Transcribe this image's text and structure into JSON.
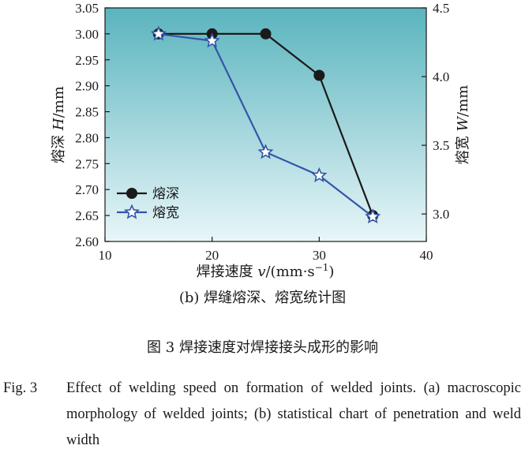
{
  "chart_data": {
    "type": "line",
    "x": [
      15,
      20,
      25,
      30,
      35
    ],
    "xlabel_prefix": "焊接速度 ",
    "xlabel_var": "v",
    "xlabel_unit": "/(mm·s",
    "xlabel_sup": "−1",
    "xlabel_close": ")",
    "xlim": [
      10,
      40
    ],
    "xticks": [
      "10",
      "20",
      "30",
      "40"
    ],
    "ylabel_left_prefix": "熔深 ",
    "ylabel_left_var": "H",
    "ylabel_left_unit": "/mm",
    "ylim_left": [
      2.6,
      3.05
    ],
    "yticks_left": [
      "2.60",
      "2.65",
      "2.70",
      "2.75",
      "2.80",
      "2.85",
      "2.90",
      "2.95",
      "3.00",
      "3.05"
    ],
    "ylabel_right_prefix": "熔宽 ",
    "ylabel_right_var": "W",
    "ylabel_right_unit": "/mm",
    "ylim_right": [
      2.8,
      4.5
    ],
    "yticks_right": [
      "3.0",
      "3.5",
      "4.0",
      "4.5"
    ],
    "series": [
      {
        "name": "熔深",
        "axis": "left",
        "marker": "circle",
        "color": "#1a1a1a",
        "values": [
          3.0,
          3.0,
          3.0,
          2.92,
          2.65
        ]
      },
      {
        "name": "熔宽",
        "axis": "right",
        "marker": "star",
        "color": "#3355a8",
        "values": [
          4.31,
          4.26,
          3.45,
          3.28,
          2.98
        ]
      }
    ],
    "legend_position": "bottom-left",
    "background_gradient": [
      "#5ab4be",
      "#e8f6f8"
    ],
    "grid": false
  },
  "captions": {
    "subcaption": "(b) 焊缝熔深、熔宽统计图",
    "figure_zh": "图 3    焊接速度对焊接接头成形的影响",
    "figure_en_no": "Fig. 3",
    "figure_en_text": "Effect of welding speed on formation of welded joints. (a) macroscopic morphology of welded joints; (b) statistical chart of penetration and weld width"
  }
}
